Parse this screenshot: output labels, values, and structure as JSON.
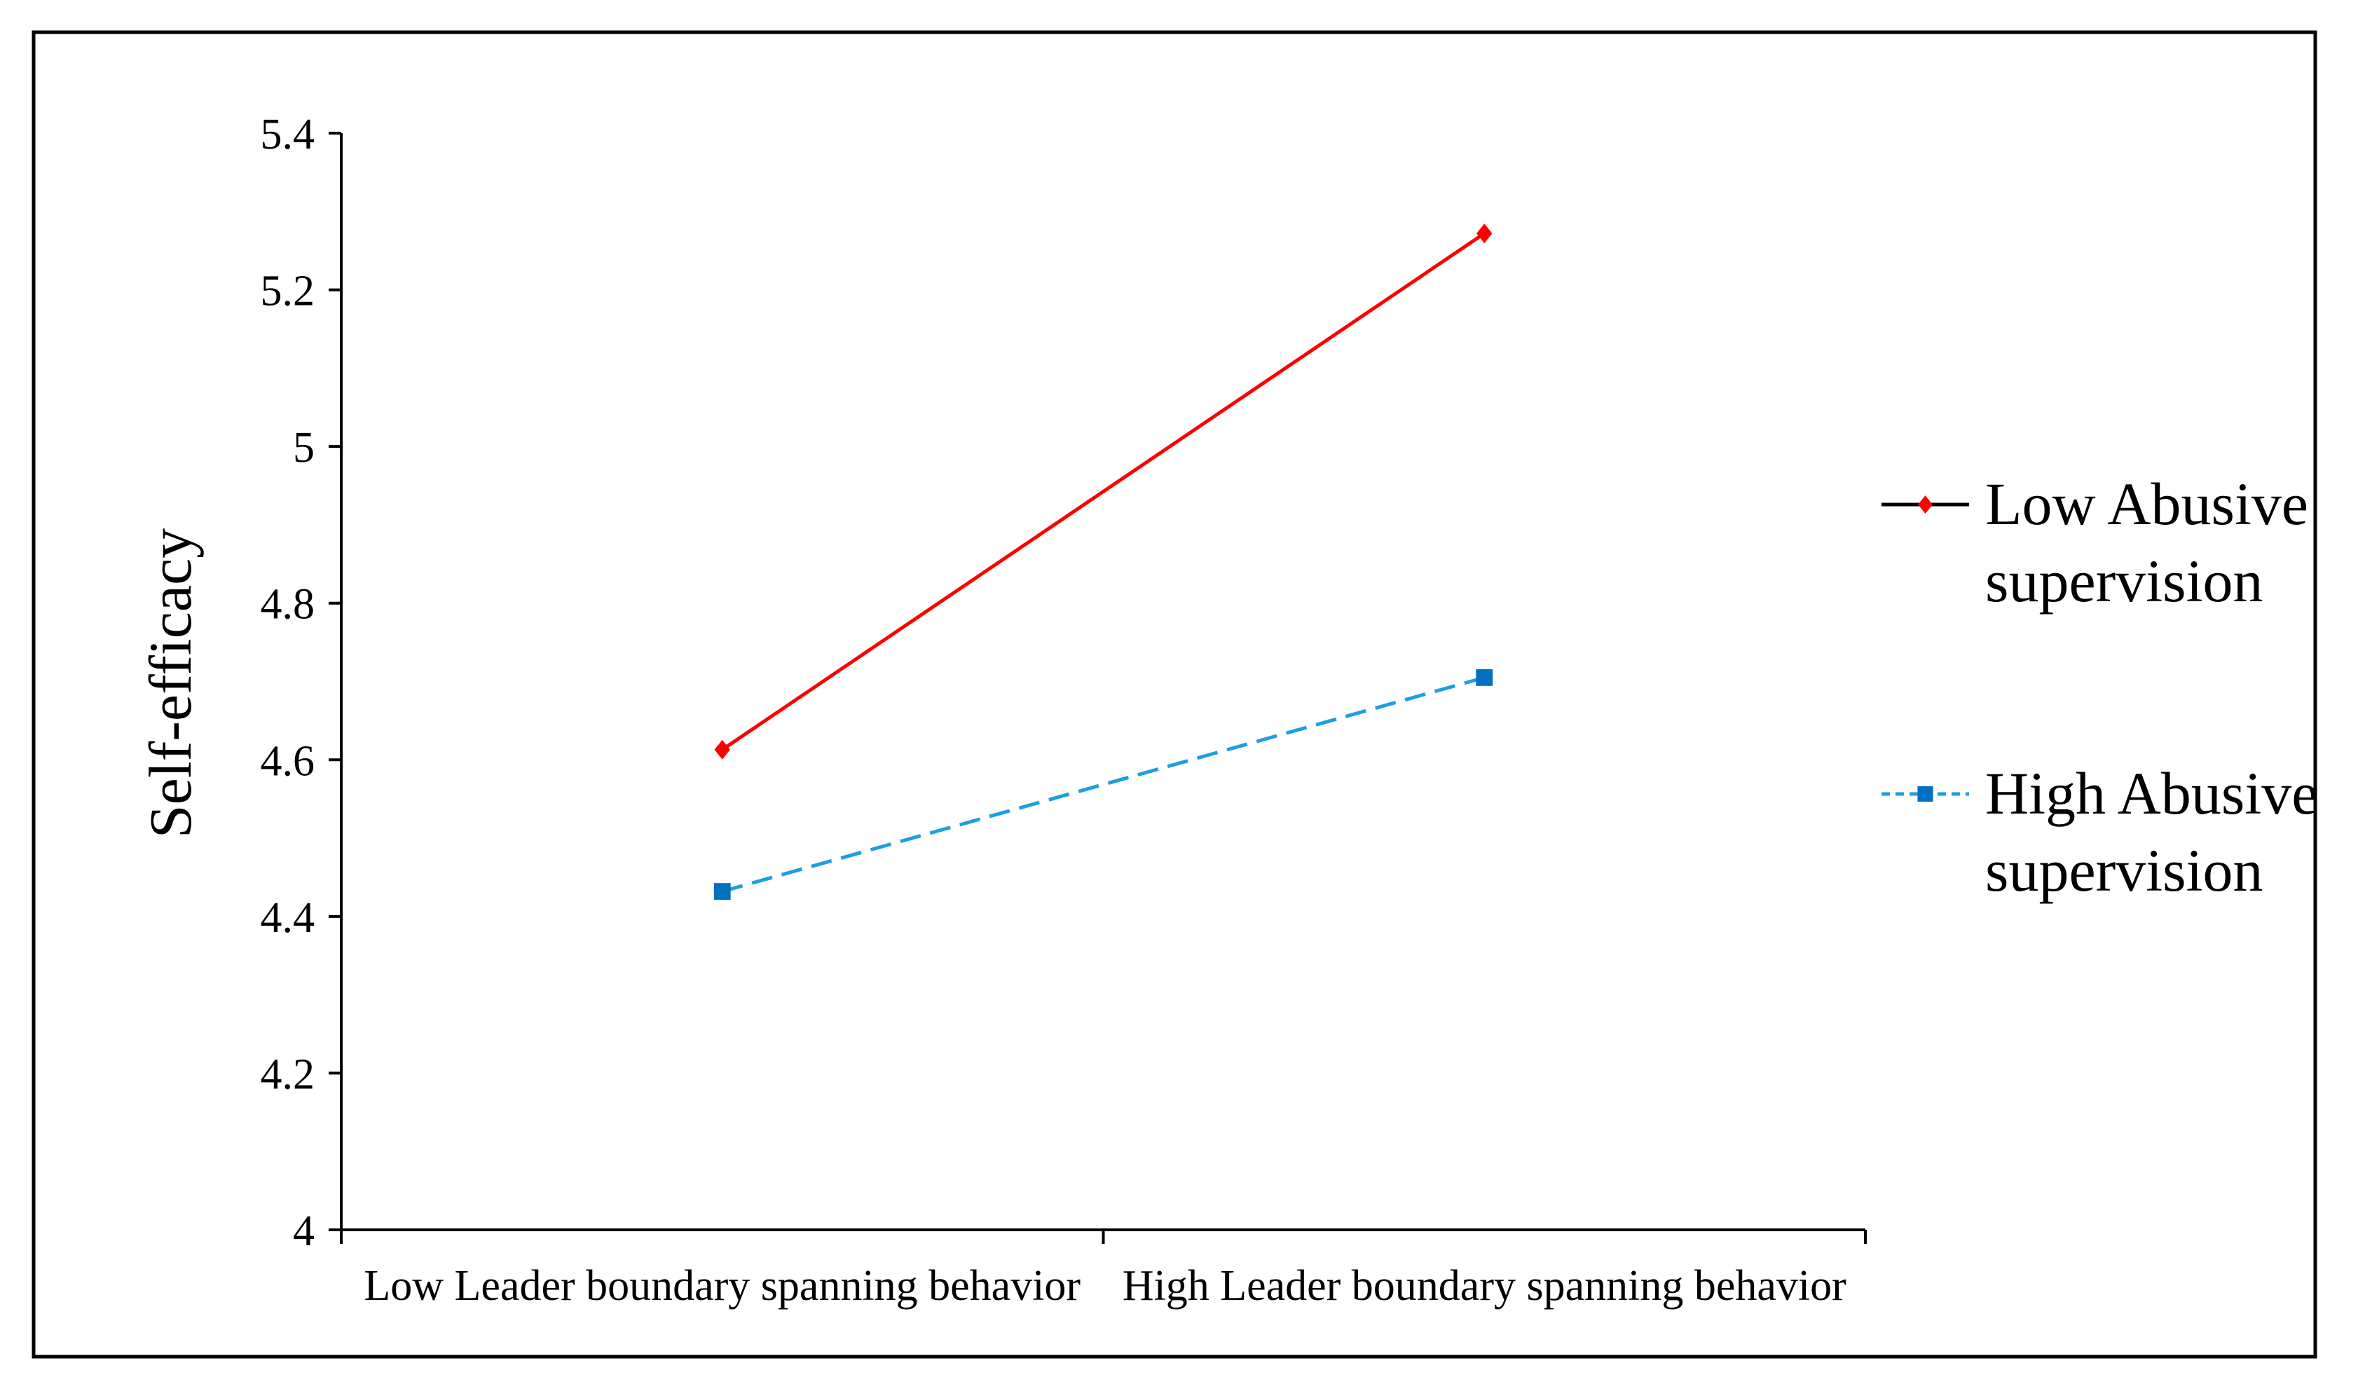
{
  "chart_data": {
    "type": "line",
    "title": "",
    "xlabel": "",
    "ylabel": "Self-efficacy",
    "categories": [
      "Low Leader boundary spanning behavior",
      "High Leader boundary spanning behavior"
    ],
    "yticks": [
      "4",
      "4.2",
      "4.4",
      "4.6",
      "4.8",
      "5",
      "5.2",
      "5.4"
    ],
    "ylim": [
      4,
      5.4
    ],
    "grid": false,
    "legend_placement": "right",
    "series": [
      {
        "name_lines": [
          "Low Abusive",
          "supervision"
        ],
        "values": [
          4.613,
          5.272
        ],
        "color": "#ff0000",
        "line_style": "solid",
        "marker": "diamond"
      },
      {
        "name_lines": [
          "High Abusive",
          "supervision"
        ],
        "values": [
          4.432,
          4.705
        ],
        "color": "#0070c0",
        "line_color": "#1e9fe0",
        "line_style": "dashed",
        "marker": "square"
      }
    ]
  }
}
